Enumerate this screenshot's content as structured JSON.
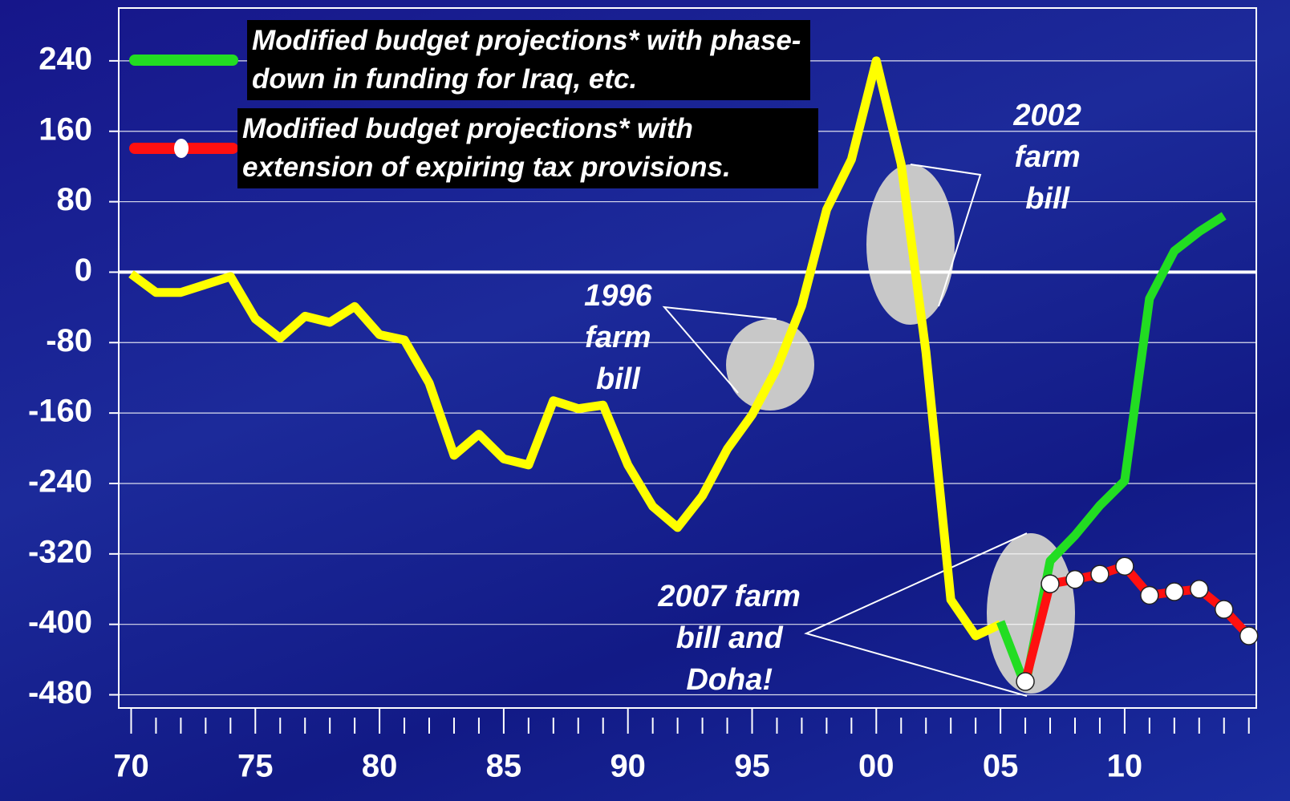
{
  "chart_data": {
    "type": "line",
    "x": [
      1970,
      1971,
      1972,
      1973,
      1974,
      1975,
      1976,
      1977,
      1978,
      1979,
      1980,
      1981,
      1982,
      1983,
      1984,
      1985,
      1986,
      1987,
      1988,
      1989,
      1990,
      1991,
      1992,
      1993,
      1994,
      1995,
      1996,
      1997,
      1998,
      1999,
      2000,
      2001,
      2002,
      2003,
      2004,
      2005,
      2006,
      2007,
      2008,
      2009,
      2010,
      2011,
      2012,
      2013,
      2014,
      2015
    ],
    "series": [
      {
        "color": "#ffff00",
        "values": [
          -2,
          -23,
          -23,
          -14,
          -5,
          -53,
          -75,
          -50,
          -57,
          -39,
          -71,
          -77,
          -126,
          -208,
          -184,
          -212,
          -219,
          -146,
          -155,
          -151,
          -219,
          -266,
          -290,
          -254,
          -201,
          -162,
          -109,
          -38,
          71,
          128,
          240,
          123,
          -91,
          -372,
          -413,
          -400,
          null,
          null,
          null,
          null,
          null,
          null,
          null,
          null,
          null,
          null
        ]
      },
      {
        "name": "Modified budget projections* with phase-down in funding for Iraq, etc.",
        "color": "#22dd22",
        "values": [
          null,
          null,
          null,
          null,
          null,
          null,
          null,
          null,
          null,
          null,
          null,
          null,
          null,
          null,
          null,
          null,
          null,
          null,
          null,
          null,
          null,
          null,
          null,
          null,
          null,
          null,
          null,
          null,
          null,
          null,
          null,
          null,
          null,
          null,
          null,
          -397,
          -470,
          -328,
          -299,
          -265,
          -237,
          -30,
          24,
          46,
          64,
          null
        ]
      },
      {
        "name": "Modified budget projections* with extension of expiring tax provisions.",
        "color": "#ff1010",
        "marker": "circle",
        "values": [
          null,
          null,
          null,
          null,
          null,
          null,
          null,
          null,
          null,
          null,
          null,
          null,
          null,
          null,
          null,
          null,
          null,
          null,
          null,
          null,
          null,
          null,
          null,
          null,
          null,
          null,
          null,
          null,
          null,
          null,
          null,
          null,
          null,
          null,
          null,
          null,
          -465,
          -354,
          -349,
          -343,
          -334,
          -367,
          -363,
          -360,
          -383,
          -413
        ]
      }
    ],
    "xlim": [
      1969.5,
      2015.3
    ],
    "xticks": [
      {
        "value": 1970,
        "label": "70"
      },
      {
        "value": 1975,
        "label": "75"
      },
      {
        "value": 1980,
        "label": "80"
      },
      {
        "value": 1985,
        "label": "85"
      },
      {
        "value": 1990,
        "label": "90"
      },
      {
        "value": 1995,
        "label": "95"
      },
      {
        "value": 2000,
        "label": "00"
      },
      {
        "value": 2005,
        "label": "05"
      },
      {
        "value": 2010,
        "label": "10"
      }
    ],
    "ylim": [
      -495,
      300
    ],
    "yticks": [
      240,
      160,
      80,
      0,
      -80,
      -160,
      -240,
      -320,
      -400,
      -480
    ],
    "grid": true,
    "annotations": [
      {
        "text": "1996 farm bill",
        "x": 1995.9
      },
      {
        "text": "2002 farm bill",
        "x": 2001.4
      },
      {
        "text": "2007 farm bill and Doha!",
        "x": 2006.1
      }
    ]
  }
}
